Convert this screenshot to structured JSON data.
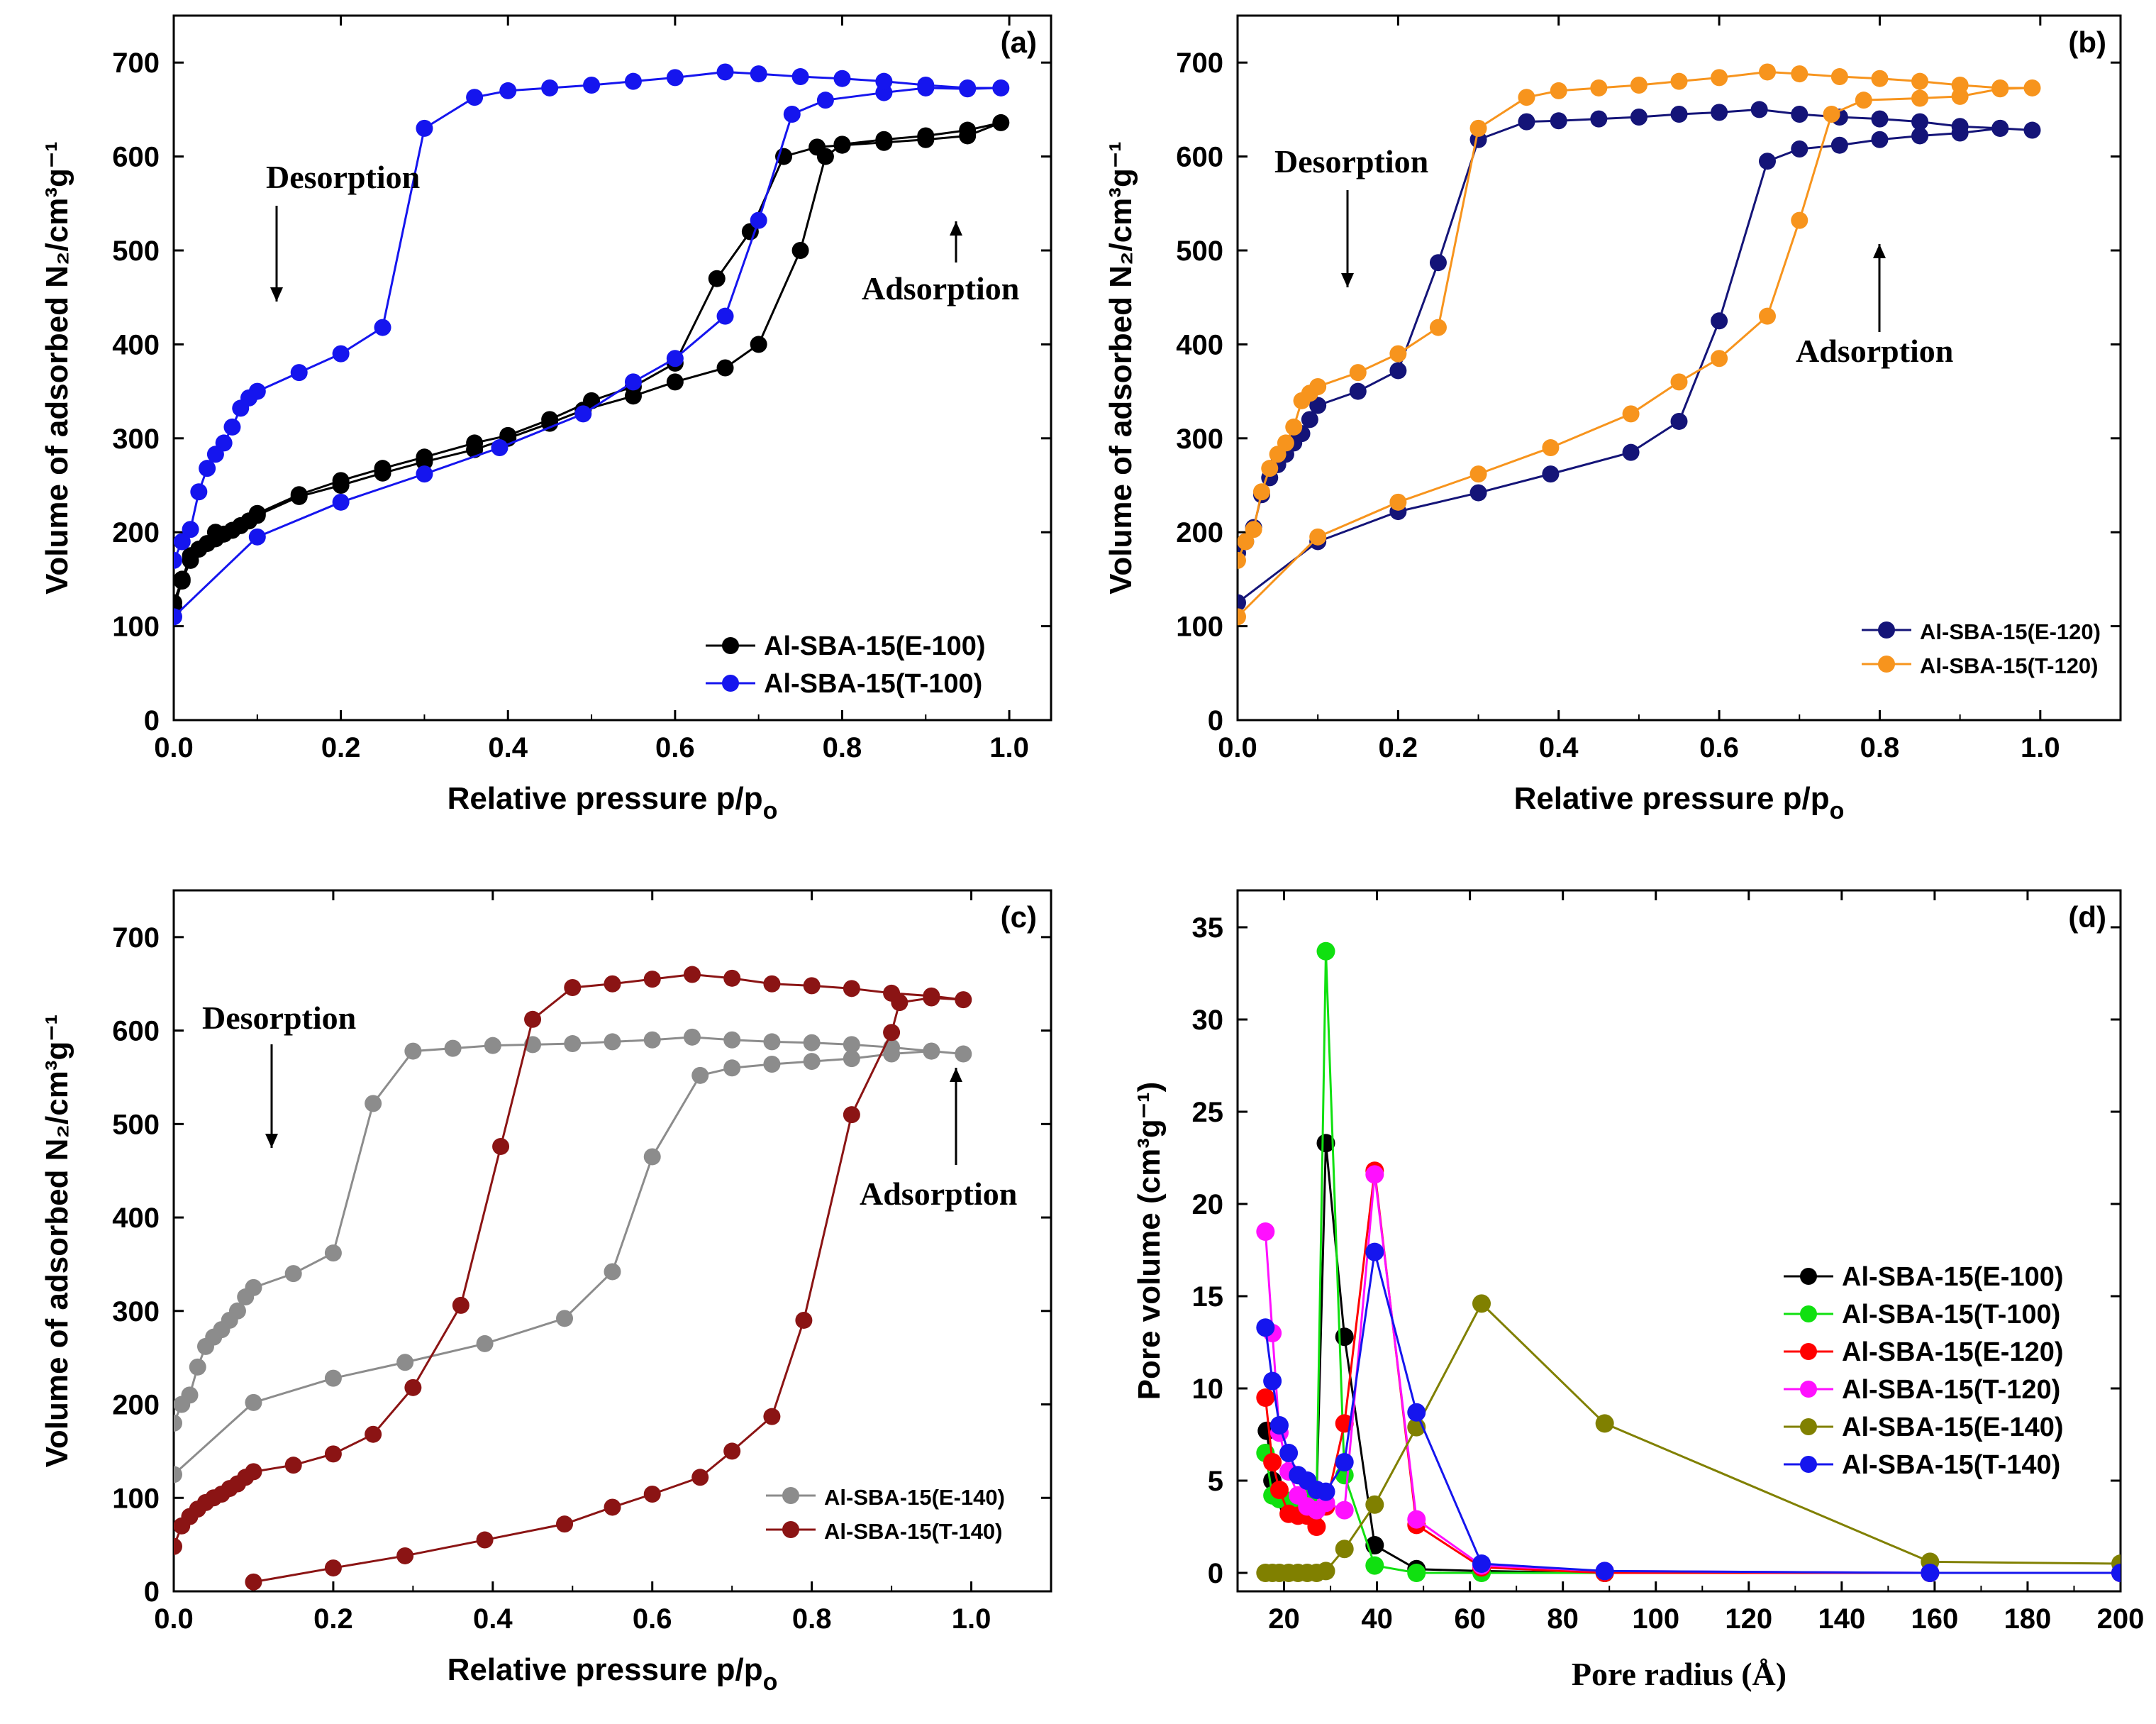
{
  "chart_data": [
    {
      "id": "a",
      "type": "line",
      "panel_label": "(a)",
      "xlabel_main": "Relative pressure p/p",
      "xlabel_sub": "o",
      "ylabel": "Volume of adsorbed N₂/cm³g⁻¹",
      "xlim": [
        0,
        1.05
      ],
      "ylim": [
        0,
        750
      ],
      "xticks": [
        "0.0",
        "0.2",
        "0.4",
        "0.6",
        "0.8",
        "1.0"
      ],
      "yticks": [
        "0",
        "100",
        "200",
        "300",
        "400",
        "500",
        "600",
        "700"
      ],
      "legend_position": "bottom-right",
      "annotations": [
        {
          "text": "Desorption",
          "arrow": "down",
          "x": 0.11,
          "y": 570
        },
        {
          "text": "Adsorption",
          "arrow": "up",
          "x": 0.94,
          "y": 560
        }
      ],
      "series": [
        {
          "name": "Al-SBA-15(E-100)",
          "color": "#000000",
          "x": [
            0.0,
            0.01,
            0.02,
            0.03,
            0.04,
            0.05,
            0.06,
            0.07,
            0.08,
            0.09,
            0.1,
            0.15,
            0.2,
            0.25,
            0.3,
            0.36,
            0.4,
            0.45,
            0.49,
            0.55,
            0.6,
            0.66,
            0.7,
            0.75,
            0.78,
            0.8,
            0.85,
            0.9,
            0.95,
            0.99,
            0.95,
            0.9,
            0.85,
            0.8,
            0.77,
            0.73,
            0.69,
            0.65,
            0.6,
            0.55,
            0.5,
            0.45,
            0.4,
            0.36,
            0.3,
            0.25,
            0.2,
            0.15,
            0.1,
            0.05,
            0.02,
            0.01,
            0.0
          ],
          "y": [
            120,
            148,
            170,
            182,
            188,
            193,
            198,
            202,
            207,
            212,
            218,
            238,
            250,
            263,
            275,
            288,
            300,
            316,
            330,
            345,
            360,
            375,
            400,
            500,
            600,
            613,
            618,
            622,
            628,
            636,
            622,
            618,
            615,
            612,
            610,
            600,
            520,
            470,
            380,
            355,
            340,
            320,
            303,
            295,
            280,
            268,
            255,
            240,
            220,
            200,
            175,
            150,
            125
          ]
        },
        {
          "name": "Al-SBA-15(T-100)",
          "color": "#1515ee",
          "x": [
            0.0,
            0.1,
            0.2,
            0.3,
            0.39,
            0.49,
            0.55,
            0.6,
            0.66,
            0.7,
            0.74,
            0.78,
            0.85,
            0.9,
            0.95,
            0.99,
            0.95,
            0.9,
            0.85,
            0.8,
            0.75,
            0.7,
            0.66,
            0.6,
            0.55,
            0.5,
            0.45,
            0.4,
            0.36,
            0.3,
            0.25,
            0.2,
            0.15,
            0.1,
            0.09,
            0.08,
            0.07,
            0.06,
            0.05,
            0.04,
            0.03,
            0.02,
            0.01,
            0.0
          ],
          "y": [
            110,
            195,
            232,
            262,
            290,
            326,
            360,
            385,
            430,
            532,
            645,
            660,
            668,
            673,
            672,
            673,
            673,
            676,
            680,
            683,
            685,
            688,
            690,
            684,
            680,
            676,
            673,
            670,
            663,
            630,
            418,
            390,
            370,
            350,
            343,
            332,
            312,
            295,
            283,
            268,
            243,
            203,
            190,
            170
          ]
        }
      ]
    },
    {
      "id": "b",
      "type": "line",
      "panel_label": "(b)",
      "xlabel_main": "Relative pressure p/p",
      "xlabel_sub": "o",
      "ylabel": "Volume of adsorbed N₂/cm³g⁻¹",
      "xlim": [
        0,
        1.1
      ],
      "ylim": [
        0,
        750
      ],
      "xticks": [
        "0.0",
        "0.2",
        "0.4",
        "0.6",
        "0.8",
        "1.0"
      ],
      "yticks": [
        "0",
        "100",
        "200",
        "300",
        "400",
        "500",
        "600",
        "700"
      ],
      "legend_position": "bottom-right",
      "annotations": [
        {
          "text": "Desorption",
          "arrow": "down",
          "x": 0.12,
          "y": 570
        },
        {
          "text": "Adsorption",
          "arrow": "up",
          "x": 0.79,
          "y": 500
        }
      ],
      "series": [
        {
          "name": "Al-SBA-15(E-120)",
          "color": "#141478",
          "x": [
            0.0,
            0.1,
            0.2,
            0.3,
            0.39,
            0.49,
            0.55,
            0.6,
            0.66,
            0.7,
            0.75,
            0.8,
            0.85,
            0.9,
            0.95,
            0.99,
            0.95,
            0.9,
            0.85,
            0.8,
            0.75,
            0.7,
            0.65,
            0.6,
            0.55,
            0.5,
            0.45,
            0.4,
            0.36,
            0.3,
            0.25,
            0.2,
            0.15,
            0.1,
            0.09,
            0.08,
            0.07,
            0.06,
            0.05,
            0.04,
            0.03,
            0.02,
            0.01,
            0.0
          ],
          "y": [
            125,
            190,
            222,
            242,
            262,
            285,
            318,
            425,
            595,
            608,
            612,
            618,
            622,
            625,
            630,
            628,
            630,
            632,
            637,
            640,
            642,
            645,
            650,
            647,
            645,
            642,
            640,
            638,
            637,
            618,
            487,
            372,
            350,
            335,
            320,
            305,
            295,
            283,
            272,
            258,
            240,
            205,
            190,
            178
          ]
        },
        {
          "name": "Al-SBA-15(T-120)",
          "color": "#f7941d",
          "x": [
            0.0,
            0.1,
            0.2,
            0.3,
            0.39,
            0.49,
            0.55,
            0.6,
            0.66,
            0.7,
            0.74,
            0.78,
            0.85,
            0.9,
            0.95,
            0.99,
            0.95,
            0.9,
            0.85,
            0.8,
            0.75,
            0.7,
            0.66,
            0.6,
            0.55,
            0.5,
            0.45,
            0.4,
            0.36,
            0.3,
            0.25,
            0.2,
            0.15,
            0.1,
            0.09,
            0.08,
            0.07,
            0.06,
            0.05,
            0.04,
            0.03,
            0.02,
            0.01,
            0.0
          ],
          "y": [
            110,
            195,
            232,
            262,
            290,
            326,
            360,
            385,
            430,
            532,
            645,
            660,
            662,
            664,
            672,
            673,
            673,
            676,
            680,
            683,
            685,
            688,
            690,
            684,
            680,
            676,
            673,
            670,
            663,
            630,
            418,
            390,
            370,
            355,
            348,
            340,
            312,
            295,
            283,
            268,
            243,
            203,
            190,
            170
          ]
        }
      ]
    },
    {
      "id": "c",
      "type": "line",
      "panel_label": "(c)",
      "xlabel_main": "Relative pressure p/p",
      "xlabel_sub": "o",
      "ylabel": "Volume of adsorbed N₂/cm³g⁻¹",
      "xlim": [
        0,
        1.1
      ],
      "ylim": [
        0,
        750
      ],
      "xticks": [
        "0.0",
        "0.2",
        "0.4",
        "0.6",
        "0.8",
        "1.0"
      ],
      "yticks": [
        "0",
        "100",
        "200",
        "300",
        "400",
        "500",
        "600",
        "700"
      ],
      "legend_position": "bottom-right",
      "annotations": [
        {
          "text": "Desorption",
          "arrow": "down",
          "x": 0.11,
          "y": 590
        },
        {
          "text": "Adsorption",
          "arrow": "up",
          "x": 0.98,
          "y": 545
        }
      ],
      "series": [
        {
          "name": "Al-SBA-15(E-140)",
          "color": "#8c8c8c",
          "x": [
            0.0,
            0.1,
            0.2,
            0.29,
            0.39,
            0.49,
            0.55,
            0.6,
            0.66,
            0.7,
            0.75,
            0.8,
            0.85,
            0.9,
            0.95,
            0.99,
            0.95,
            0.9,
            0.85,
            0.8,
            0.75,
            0.7,
            0.65,
            0.6,
            0.55,
            0.5,
            0.45,
            0.4,
            0.35,
            0.3,
            0.25,
            0.2,
            0.15,
            0.1,
            0.09,
            0.08,
            0.07,
            0.06,
            0.05,
            0.04,
            0.03,
            0.02,
            0.01,
            0.0
          ],
          "y": [
            125,
            202,
            228,
            245,
            265,
            292,
            342,
            465,
            552,
            560,
            564,
            567,
            570,
            575,
            578,
            575,
            578,
            582,
            585,
            587,
            588,
            590,
            593,
            590,
            588,
            586,
            585,
            584,
            581,
            578,
            522,
            362,
            340,
            325,
            315,
            300,
            290,
            280,
            272,
            262,
            240,
            210,
            200,
            180
          ]
        },
        {
          "name": "Al-SBA-15(T-140)",
          "color": "#8b1414",
          "x": [
            0.1,
            0.2,
            0.29,
            0.39,
            0.49,
            0.55,
            0.6,
            0.66,
            0.7,
            0.75,
            0.79,
            0.85,
            0.9,
            0.91,
            0.95,
            0.99,
            0.95,
            0.9,
            0.85,
            0.8,
            0.75,
            0.7,
            0.65,
            0.6,
            0.55,
            0.5,
            0.45,
            0.41,
            0.36,
            0.3,
            0.25,
            0.2,
            0.15,
            0.1,
            0.09,
            0.08,
            0.07,
            0.06,
            0.05,
            0.04,
            0.03,
            0.02,
            0.01,
            0.0
          ],
          "y": [
            10,
            25,
            38,
            55,
            72,
            90,
            104,
            122,
            150,
            187,
            290,
            510,
            598,
            630,
            635,
            633,
            637,
            640,
            645,
            648,
            650,
            656,
            660,
            655,
            650,
            646,
            612,
            476,
            306,
            218,
            168,
            147,
            135,
            128,
            122,
            115,
            110,
            104,
            100,
            95,
            88,
            80,
            70,
            48
          ]
        }
      ]
    },
    {
      "id": "d",
      "type": "line",
      "panel_label": "(d)",
      "xlabel": "Pore radius (Å)",
      "ylabel": "Pore volume (cm³g⁻¹)",
      "xlim": [
        10,
        200
      ],
      "ylim": [
        -1,
        37
      ],
      "xticks": [
        "20",
        "40",
        "60",
        "80",
        "100",
        "120",
        "140",
        "160",
        "180",
        "200"
      ],
      "yticks": [
        "0",
        "5",
        "10",
        "15",
        "20",
        "25",
        "30",
        "35"
      ],
      "legend_position": "center-right",
      "series": [
        {
          "name": "Al-SBA-15(E-100)",
          "color": "#000000",
          "x": [
            16.3,
            17.5,
            19,
            21,
            23,
            25,
            27,
            29,
            33,
            39.5,
            48.5,
            62.5,
            89,
            159,
            200
          ],
          "y": [
            7.7,
            5,
            4.3,
            3.6,
            3.2,
            3.5,
            4.1,
            23.3,
            12.8,
            1.5,
            0.2,
            0.1,
            0,
            0,
            0
          ]
        },
        {
          "name": "Al-SBA-15(T-100)",
          "color": "#10e010",
          "x": [
            16,
            17.5,
            19,
            21,
            23,
            25,
            27,
            29,
            33,
            39.5,
            48.5,
            62.5,
            89,
            159,
            200
          ],
          "y": [
            6.5,
            4.2,
            4,
            3.9,
            4,
            4.2,
            4.2,
            33.7,
            5.3,
            0.4,
            0,
            0,
            0,
            0,
            0
          ]
        },
        {
          "name": "Al-SBA-15(E-120)",
          "color": "#ff0000",
          "x": [
            16,
            17.5,
            19,
            21,
            23,
            25,
            27,
            29,
            33,
            39.5,
            48.5,
            62.5,
            89,
            159,
            200
          ],
          "y": [
            9.5,
            6,
            4.5,
            3.2,
            3.1,
            3.1,
            2.5,
            3.6,
            8.1,
            21.8,
            2.6,
            0.3,
            0,
            0,
            0
          ]
        },
        {
          "name": "Al-SBA-15(T-120)",
          "color": "#ff10ff",
          "x": [
            16,
            17.5,
            19,
            21,
            23,
            25,
            27,
            29,
            33,
            39.5,
            48.5,
            62.5,
            89,
            159,
            200
          ],
          "y": [
            18.5,
            13,
            7.6,
            5.5,
            4.2,
            3.6,
            3.4,
            3.8,
            3.4,
            21.6,
            2.9,
            0.4,
            0.1,
            0,
            0
          ]
        },
        {
          "name": "Al-SBA-15(E-140)",
          "color": "#808000",
          "x": [
            16,
            17.5,
            19,
            21,
            23,
            25,
            27,
            29,
            33,
            39.5,
            48.5,
            62.5,
            89,
            159,
            200
          ],
          "y": [
            0,
            0,
            0,
            0,
            0,
            0,
            0,
            0.1,
            1.3,
            3.7,
            7.9,
            14.6,
            8.1,
            0.6,
            0.5
          ]
        },
        {
          "name": "Al-SBA-15(T-140)",
          "color": "#1515ee",
          "x": [
            16,
            17.5,
            19,
            21,
            23,
            25,
            27,
            29,
            33,
            39.5,
            48.5,
            62.5,
            89,
            159,
            200
          ],
          "y": [
            13.3,
            10.4,
            8,
            6.5,
            5.3,
            5,
            4.5,
            4.4,
            6,
            17.4,
            8.7,
            0.5,
            0.1,
            0,
            0
          ]
        }
      ]
    }
  ]
}
